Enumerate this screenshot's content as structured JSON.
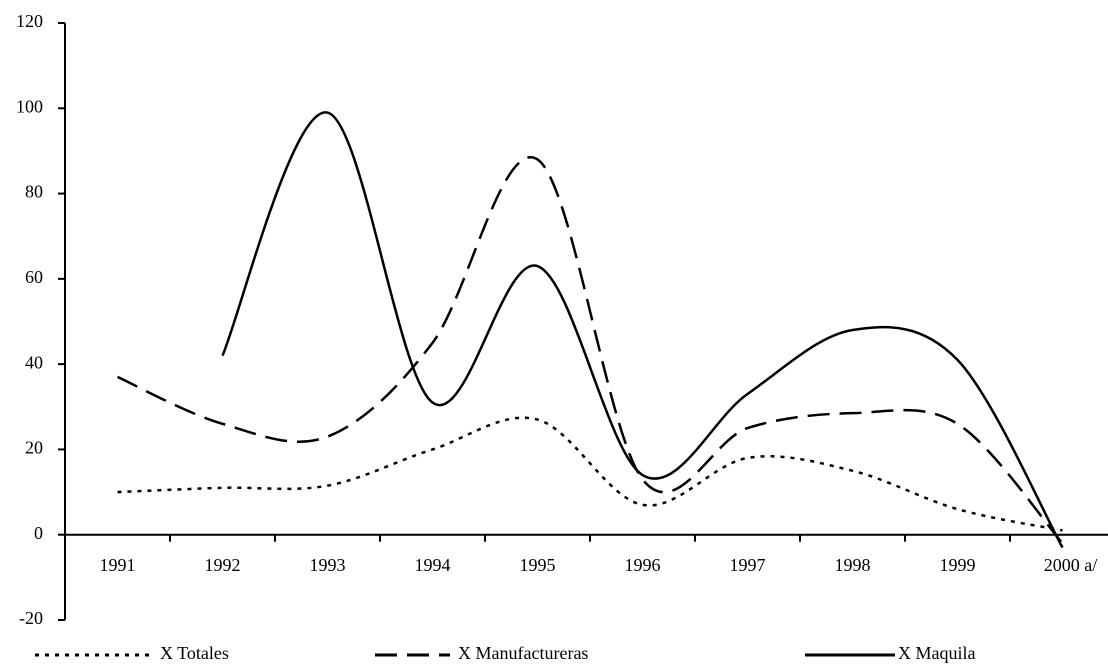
{
  "chart_data": {
    "type": "line",
    "categories": [
      "1991",
      "1992",
      "1993",
      "1994",
      "1995",
      "1996",
      "1997",
      "1998",
      "1999",
      "2000 a/"
    ],
    "series": [
      {
        "name": "X Totales",
        "color": "#000000",
        "line_style": "dotted",
        "values": [
          10,
          11,
          11.5,
          20,
          27,
          7,
          18,
          15,
          6,
          1
        ]
      },
      {
        "name": "X Manufactureras",
        "color": "#000000",
        "line_style": "dashed",
        "values": [
          37,
          26,
          23,
          45,
          88,
          13,
          25,
          28.5,
          26,
          -2
        ]
      },
      {
        "name": "X Maquila",
        "color": "#000000",
        "line_style": "solid",
        "values": [
          null,
          42,
          99,
          31,
          63,
          14,
          33,
          48,
          41,
          -3
        ]
      }
    ],
    "ylim": [
      -20,
      120
    ],
    "yticks": [
      -20,
      0,
      20,
      40,
      60,
      80,
      100,
      120
    ],
    "grid": false
  }
}
